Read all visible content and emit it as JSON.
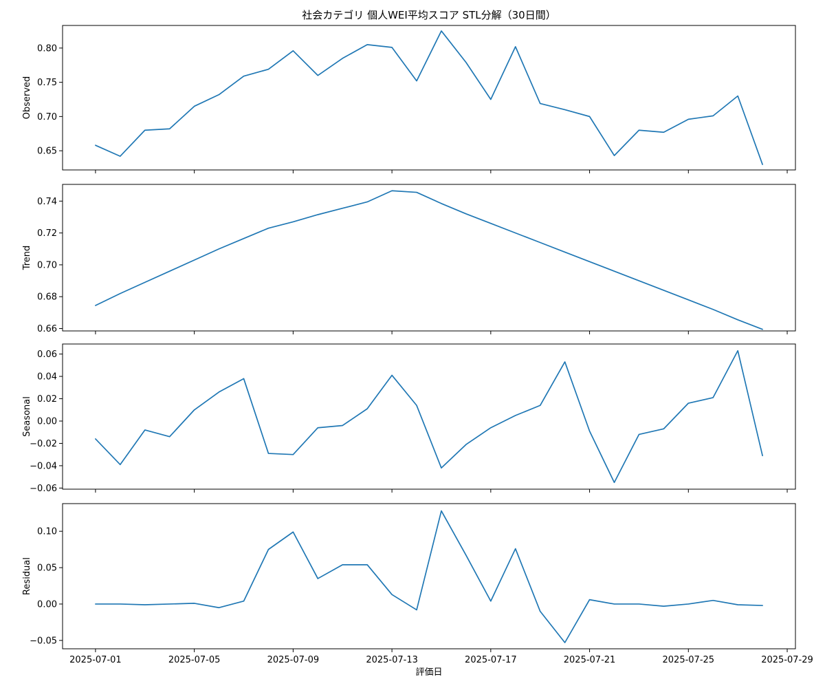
{
  "chart_data": {
    "type": "line",
    "title": "社会カテゴリ 個人WEI平均スコア STL分解（30日間）",
    "xlabel": "評価日",
    "x": [
      "2025-07-01",
      "2025-07-02",
      "2025-07-03",
      "2025-07-04",
      "2025-07-05",
      "2025-07-06",
      "2025-07-07",
      "2025-07-08",
      "2025-07-09",
      "2025-07-10",
      "2025-07-11",
      "2025-07-12",
      "2025-07-13",
      "2025-07-14",
      "2025-07-15",
      "2025-07-16",
      "2025-07-17",
      "2025-07-18",
      "2025-07-19",
      "2025-07-20",
      "2025-07-21",
      "2025-07-22",
      "2025-07-23",
      "2025-07-24",
      "2025-07-25",
      "2025-07-26",
      "2025-07-27",
      "2025-07-28"
    ],
    "x_ticks": [
      "2025-07-01",
      "2025-07-05",
      "2025-07-09",
      "2025-07-13",
      "2025-07-17",
      "2025-07-21",
      "2025-07-25",
      "2025-07-29"
    ],
    "x_range": [
      "2025-06-29T16:00",
      "2025-07-29T08:00"
    ],
    "line_color": "#1f77b4",
    "grid": false,
    "legend": "none",
    "panels": [
      {
        "ylabel": "Observed",
        "ylim": [
          0.622,
          0.833
        ],
        "y_ticks": [
          0.65,
          0.7,
          0.75,
          0.8
        ],
        "y_tick_labels": [
          "0.65",
          "0.70",
          "0.75",
          "0.80"
        ],
        "values": [
          0.658,
          0.642,
          0.68,
          0.682,
          0.715,
          0.732,
          0.759,
          0.769,
          0.796,
          0.76,
          0.785,
          0.805,
          0.801,
          0.752,
          0.825,
          0.779,
          0.725,
          0.802,
          0.719,
          0.71,
          0.7,
          0.643,
          0.68,
          0.677,
          0.696,
          0.701,
          0.73,
          0.63
        ]
      },
      {
        "ylabel": "Trend",
        "ylim": [
          0.6585,
          0.7505
        ],
        "y_ticks": [
          0.66,
          0.68,
          0.7,
          0.72,
          0.74
        ],
        "y_tick_labels": [
          "0.66",
          "0.68",
          "0.70",
          "0.72",
          "0.74"
        ],
        "values": [
          0.6745,
          0.682,
          0.689,
          0.696,
          0.703,
          0.71,
          0.7165,
          0.723,
          0.727,
          0.7315,
          0.7355,
          0.7395,
          0.7465,
          0.7455,
          0.7385,
          0.732,
          0.726,
          0.72,
          0.714,
          0.708,
          0.702,
          0.696,
          0.69,
          0.684,
          0.678,
          0.672,
          0.6655,
          0.6595
        ]
      },
      {
        "ylabel": "Seasonal",
        "ylim": [
          -0.061,
          0.069
        ],
        "y_ticks": [
          -0.06,
          -0.04,
          -0.02,
          0.0,
          0.02,
          0.04,
          0.06
        ],
        "y_tick_labels": [
          "−0.06",
          "−0.04",
          "−0.02",
          "0.00",
          "0.02",
          "0.04",
          "0.06"
        ],
        "values": [
          -0.016,
          -0.039,
          -0.008,
          -0.014,
          0.01,
          0.026,
          0.038,
          -0.029,
          -0.03,
          -0.006,
          -0.004,
          0.011,
          0.041,
          0.014,
          -0.042,
          -0.021,
          -0.006,
          0.005,
          0.014,
          0.053,
          -0.009,
          -0.055,
          -0.012,
          -0.007,
          0.016,
          0.021,
          0.063,
          -0.031
        ]
      },
      {
        "ylabel": "Residual",
        "ylim": [
          -0.0615,
          0.138
        ],
        "y_ticks": [
          -0.05,
          0.0,
          0.05,
          0.1
        ],
        "y_tick_labels": [
          "−0.05",
          "0.00",
          "0.05",
          "0.10"
        ],
        "values": [
          0.0,
          0.0,
          -0.001,
          0.0,
          0.001,
          -0.005,
          0.004,
          0.075,
          0.099,
          0.035,
          0.054,
          0.054,
          0.013,
          -0.008,
          0.128,
          0.067,
          0.004,
          0.076,
          -0.01,
          -0.053,
          0.006,
          0.0,
          0.0,
          -0.003,
          0.0,
          0.005,
          -0.001,
          -0.002
        ]
      }
    ]
  }
}
